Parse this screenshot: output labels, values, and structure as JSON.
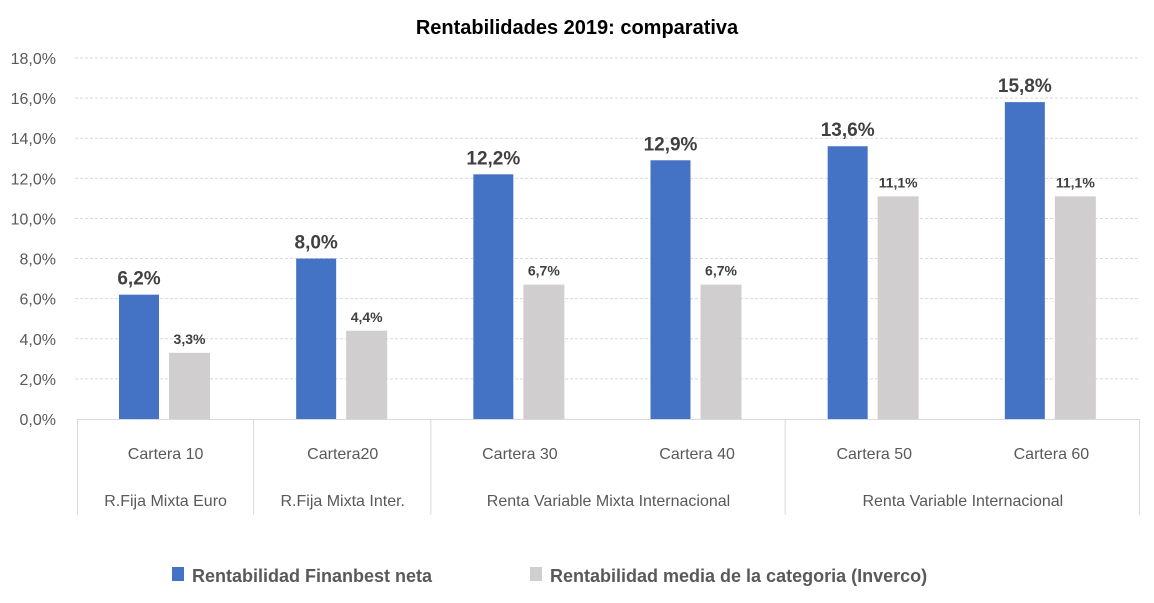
{
  "chart_data": {
    "type": "bar",
    "title": "Rentabilidades 2019: comparativa",
    "categories": [
      "Cartera 10",
      "Cartera20",
      "Cartera 30",
      "Cartera 40",
      "Cartera 50",
      "Cartera 60"
    ],
    "category_groups": [
      {
        "label": "R.Fija Mixta Euro",
        "span": 1
      },
      {
        "label": "R.Fija Mixta Inter.",
        "span": 1
      },
      {
        "label": "Renta Variable Mixta Internacional",
        "span": 2
      },
      {
        "label": "Renta Variable Internacional",
        "span": 2
      }
    ],
    "series": [
      {
        "name": "Rentabilidad Finanbest neta",
        "color": "#4472C4",
        "values": [
          6.2,
          8.0,
          12.2,
          12.9,
          13.6,
          15.8
        ],
        "labels": [
          "6,2%",
          "8,0%",
          "12,2%",
          "12,9%",
          "13,6%",
          "15,8%"
        ]
      },
      {
        "name": "Rentabilidad media de la categoria (Inverco)",
        "color": "#D0CECE",
        "values": [
          3.3,
          4.4,
          6.7,
          6.7,
          11.1,
          11.1
        ],
        "labels": [
          "3,3%",
          "4,4%",
          "6,7%",
          "6,7%",
          "11,1%",
          "11,1%"
        ]
      }
    ],
    "ylim": [
      0,
      18
    ],
    "yticks": [
      "0,0%",
      "2,0%",
      "4,0%",
      "6,0%",
      "8,0%",
      "10,0%",
      "12,0%",
      "14,0%",
      "16,0%",
      "18,0%"
    ],
    "xlabel": "",
    "ylabel": "",
    "grid": true,
    "legend_position": "bottom"
  }
}
